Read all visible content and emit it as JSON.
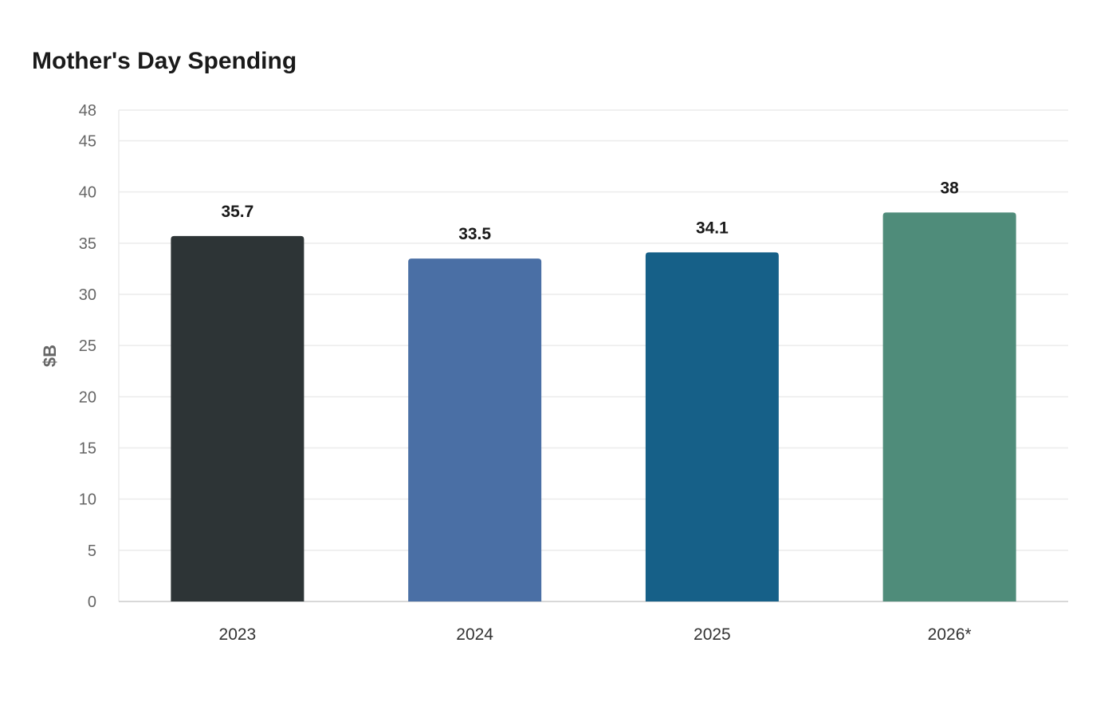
{
  "chart_data": {
    "type": "bar",
    "title": "Mother's Day Spending",
    "xlabel": "",
    "ylabel": "$B",
    "categories": [
      "2023",
      "2024",
      "2025",
      "2026*"
    ],
    "values": [
      35.7,
      33.5,
      34.1,
      38
    ],
    "colors": [
      "#2d3436",
      "#4a6fa5",
      "#166088",
      "#4f8c7a"
    ],
    "ylim": [
      0,
      48
    ],
    "yticks": [
      0,
      5,
      10,
      15,
      20,
      25,
      30,
      35,
      40,
      45,
      48
    ],
    "grid": true,
    "data_labels": true
  }
}
